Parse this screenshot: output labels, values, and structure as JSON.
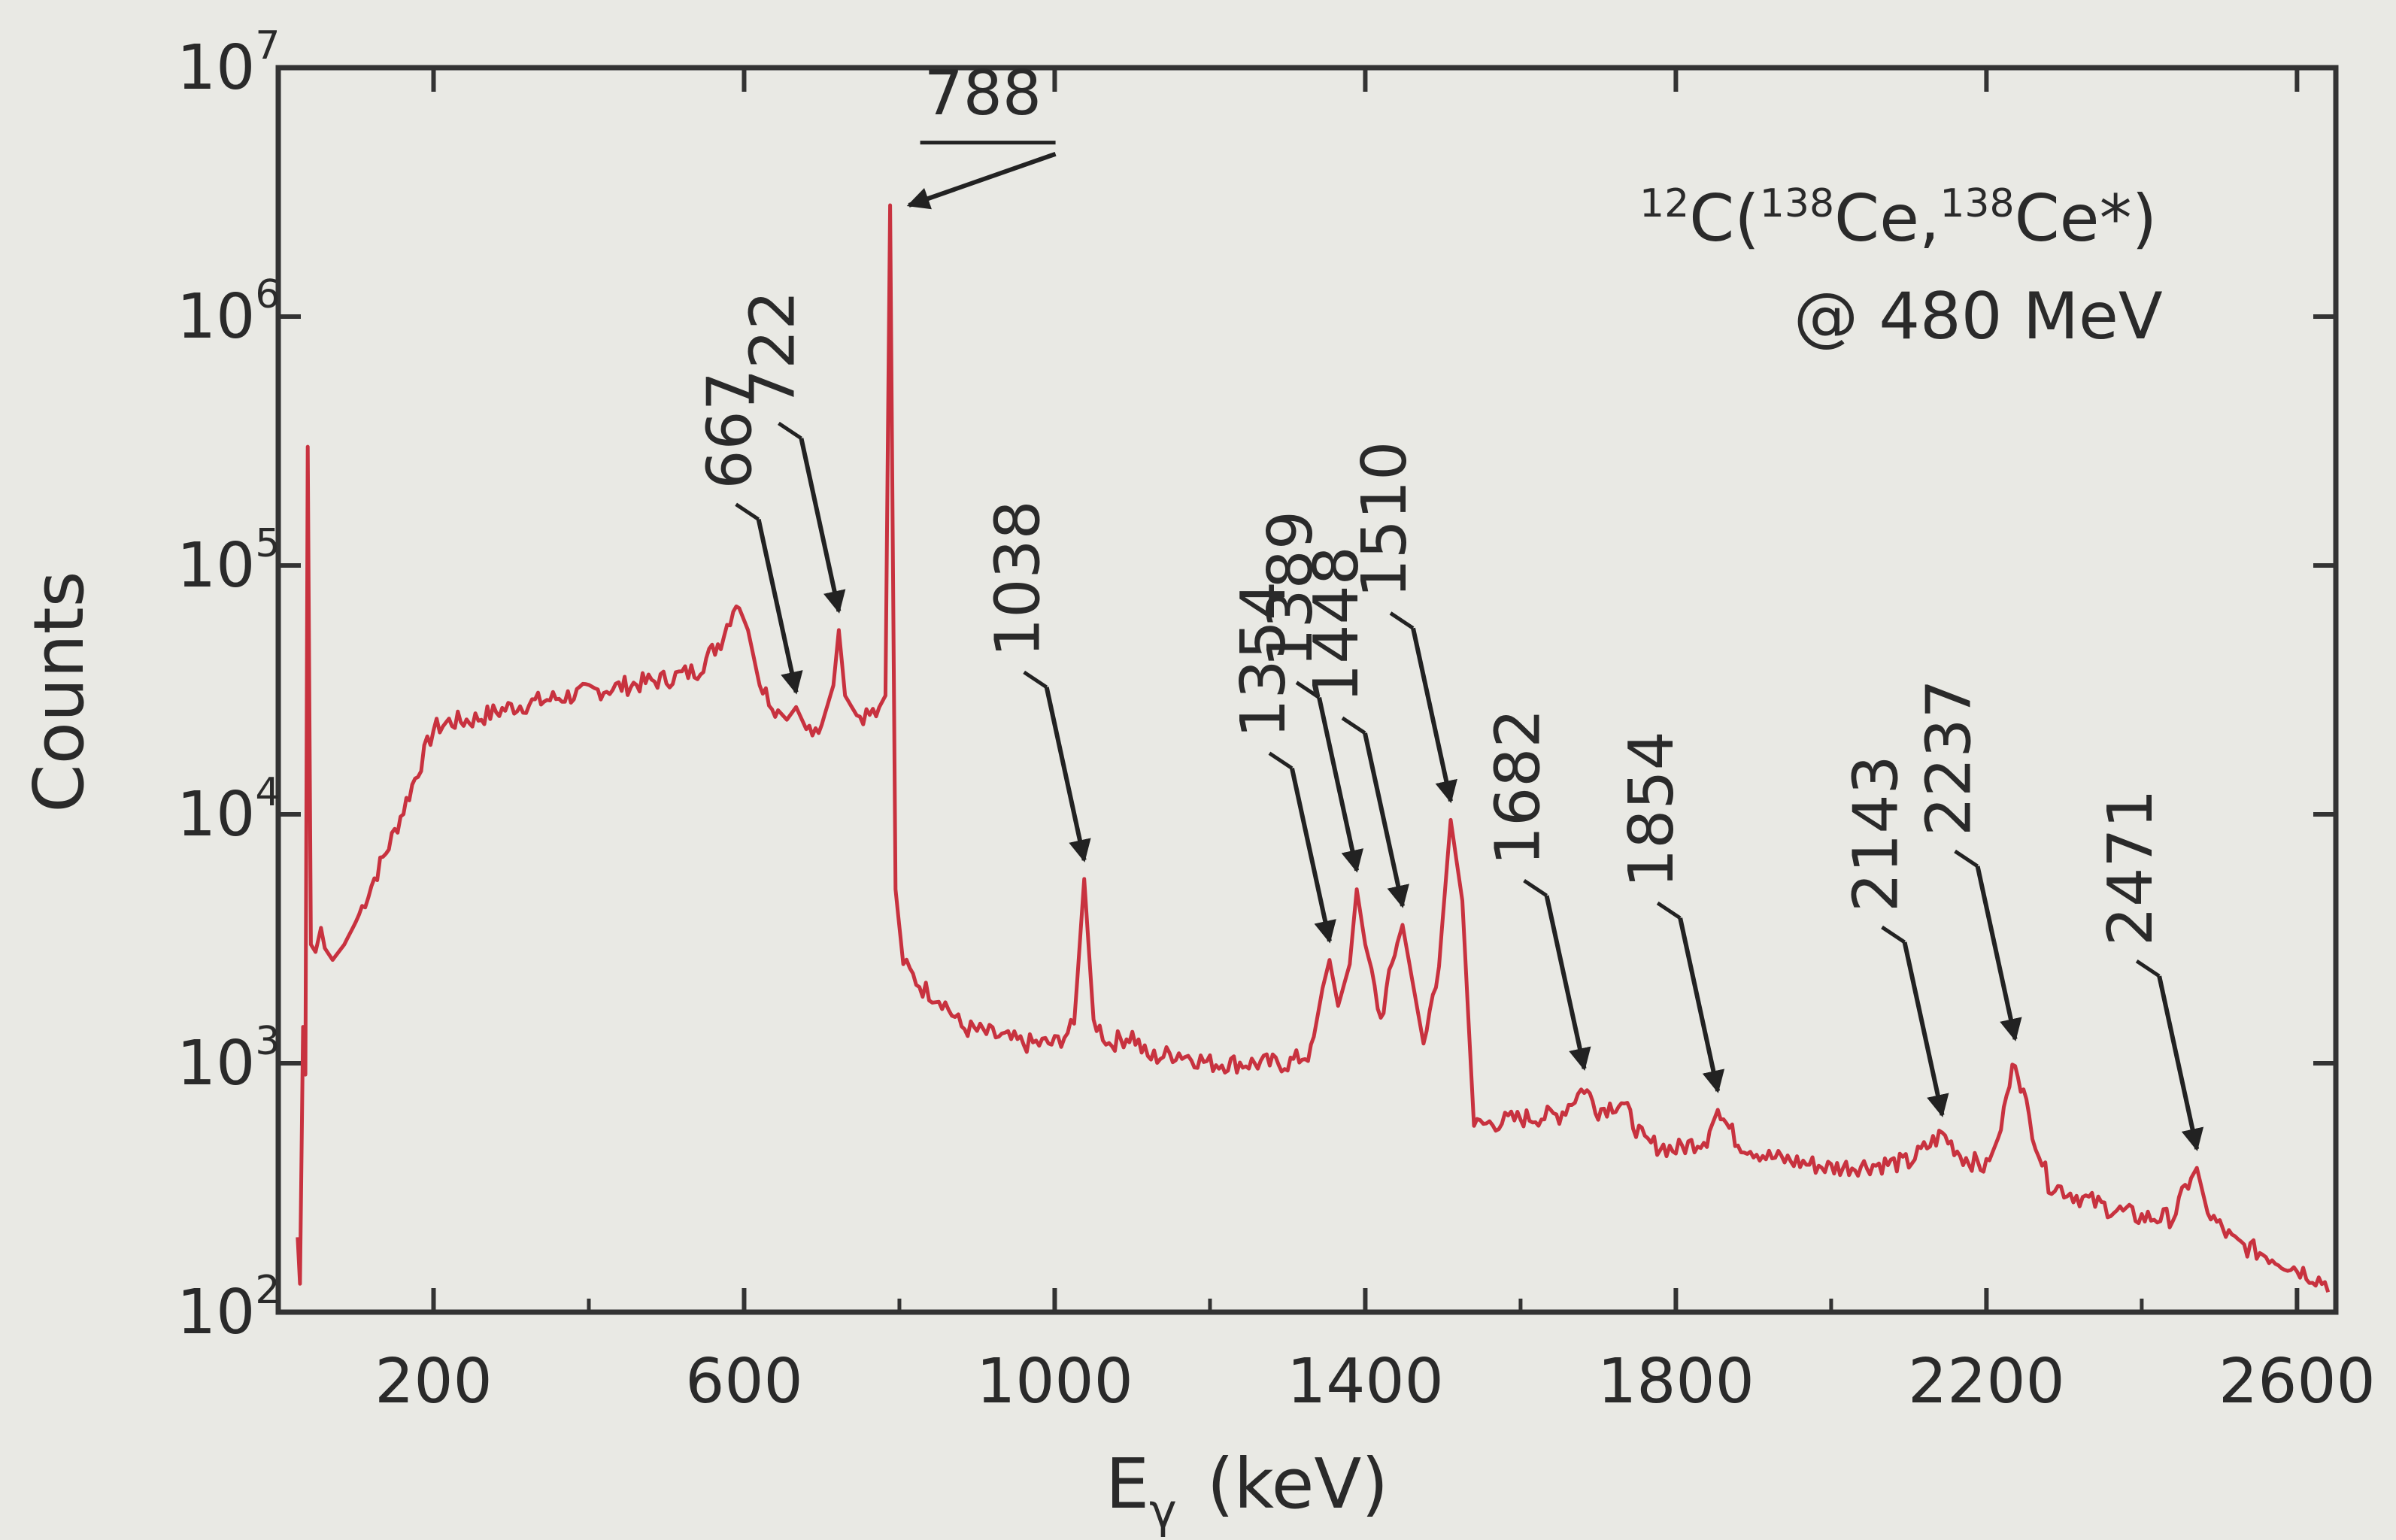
{
  "chart_data": {
    "type": "line",
    "xlabel_main": "E",
    "xlabel_sub": "γ",
    "xlabel_unit": "(keV)",
    "ylabel": "Counts",
    "xlim": [
      0,
      2650
    ],
    "ylim": [
      100,
      10000000
    ],
    "y_scale": "log",
    "x_ticks": [
      {
        "v": 200,
        "label": "200"
      },
      {
        "v": 600,
        "label": "600"
      },
      {
        "v": 1000,
        "label": "1000"
      },
      {
        "v": 1400,
        "label": "1400"
      },
      {
        "v": 1800,
        "label": "1800"
      },
      {
        "v": 2200,
        "label": "2200"
      },
      {
        "v": 2600,
        "label": "2600"
      }
    ],
    "y_ticks": [
      {
        "v": 100,
        "base": "10",
        "exp": "2"
      },
      {
        "v": 1000,
        "base": "10",
        "exp": "3"
      },
      {
        "v": 10000,
        "base": "10",
        "exp": "4"
      },
      {
        "v": 100000,
        "base": "10",
        "exp": "5"
      },
      {
        "v": 1000000,
        "base": "10",
        "exp": "6"
      },
      {
        "v": 10000000,
        "base": "10",
        "exp": "7"
      }
    ],
    "series": [
      {
        "color": "#c8323f",
        "points": [
          [
            25,
            200
          ],
          [
            28,
            130
          ],
          [
            32,
            1400
          ],
          [
            35,
            900
          ],
          [
            38,
            300000
          ],
          [
            42,
            3000
          ],
          [
            48,
            2800
          ],
          [
            55,
            3500
          ],
          [
            60,
            2900
          ],
          [
            70,
            2600
          ],
          [
            85,
            3000
          ],
          [
            100,
            3700
          ],
          [
            120,
            5200
          ],
          [
            150,
            8500
          ],
          [
            180,
            15000
          ],
          [
            200,
            22000
          ],
          [
            220,
            23500
          ],
          [
            250,
            24000
          ],
          [
            300,
            27000
          ],
          [
            350,
            29000
          ],
          [
            400,
            31000
          ],
          [
            450,
            33000
          ],
          [
            500,
            35000
          ],
          [
            540,
            38000
          ],
          [
            570,
            50000
          ],
          [
            590,
            72000
          ],
          [
            605,
            55000
          ],
          [
            620,
            33000
          ],
          [
            640,
            27000
          ],
          [
            655,
            24000
          ],
          [
            667,
            27000
          ],
          [
            680,
            22000
          ],
          [
            700,
            23000
          ],
          [
            715,
            33000
          ],
          [
            722,
            55000
          ],
          [
            730,
            30000
          ],
          [
            745,
            25000
          ],
          [
            770,
            25500
          ],
          [
            782,
            30000
          ],
          [
            788,
            2800000
          ],
          [
            795,
            5000
          ],
          [
            805,
            2500
          ],
          [
            830,
            2000
          ],
          [
            855,
            1800
          ],
          [
            880,
            1400
          ],
          [
            920,
            1300
          ],
          [
            960,
            1200
          ],
          [
            1000,
            1200
          ],
          [
            1025,
            1400
          ],
          [
            1038,
            5500
          ],
          [
            1050,
            1500
          ],
          [
            1070,
            1200
          ],
          [
            1100,
            1300
          ],
          [
            1120,
            1050
          ],
          [
            1160,
            1100
          ],
          [
            1200,
            1000
          ],
          [
            1250,
            1000
          ],
          [
            1300,
            1000
          ],
          [
            1330,
            1100
          ],
          [
            1345,
            2000
          ],
          [
            1354,
            2600
          ],
          [
            1365,
            1700
          ],
          [
            1380,
            2500
          ],
          [
            1389,
            5000
          ],
          [
            1400,
            3000
          ],
          [
            1420,
            1500
          ],
          [
            1438,
            2800
          ],
          [
            1448,
            3600
          ],
          [
            1460,
            2200
          ],
          [
            1475,
            1200
          ],
          [
            1495,
            2500
          ],
          [
            1510,
            9500
          ],
          [
            1525,
            4500
          ],
          [
            1540,
            560
          ],
          [
            1600,
            600
          ],
          [
            1650,
            620
          ],
          [
            1682,
            800
          ],
          [
            1700,
            650
          ],
          [
            1730,
            700
          ],
          [
            1760,
            480
          ],
          [
            1800,
            450
          ],
          [
            1840,
            500
          ],
          [
            1854,
            650
          ],
          [
            1880,
            480
          ],
          [
            1920,
            420
          ],
          [
            1960,
            400
          ],
          [
            2000,
            380
          ],
          [
            2050,
            390
          ],
          [
            2100,
            400
          ],
          [
            2143,
            520
          ],
          [
            2170,
            420
          ],
          [
            2200,
            380
          ],
          [
            2215,
            500
          ],
          [
            2237,
            1050
          ],
          [
            2255,
            600
          ],
          [
            2280,
            330
          ],
          [
            2320,
            290
          ],
          [
            2360,
            260
          ],
          [
            2400,
            240
          ],
          [
            2440,
            240
          ],
          [
            2460,
            330
          ],
          [
            2471,
            380
          ],
          [
            2485,
            250
          ],
          [
            2520,
            190
          ],
          [
            2560,
            170
          ],
          [
            2600,
            150
          ],
          [
            2640,
            130
          ]
        ]
      }
    ],
    "peaks": [
      {
        "label": "667",
        "x": 667,
        "y": 26000
      },
      {
        "label": "722",
        "x": 722,
        "y": 55000
      },
      {
        "label": "788",
        "x": 788,
        "y": 2800000
      },
      {
        "label": "1038",
        "x": 1038,
        "y": 5500
      },
      {
        "label": "1354",
        "x": 1354,
        "y": 2600
      },
      {
        "label": "1389",
        "x": 1389,
        "y": 5000
      },
      {
        "label": "1448",
        "x": 1448,
        "y": 3600
      },
      {
        "label": "1510",
        "x": 1510,
        "y": 9500
      },
      {
        "label": "1682",
        "x": 1682,
        "y": 800
      },
      {
        "label": "1854",
        "x": 1854,
        "y": 650
      },
      {
        "label": "2143",
        "x": 2143,
        "y": 520
      },
      {
        "label": "2237",
        "x": 2237,
        "y": 1050
      },
      {
        "label": "2471",
        "x": 2471,
        "y": 380
      }
    ],
    "annotation": {
      "line1_pre": "12",
      "line1_a": "C(",
      "line1_sup1": "138",
      "line1_b": "Ce,",
      "line1_sup2": "138",
      "line1_c": "Ce*)",
      "line2": "@ 480 MeV"
    }
  }
}
